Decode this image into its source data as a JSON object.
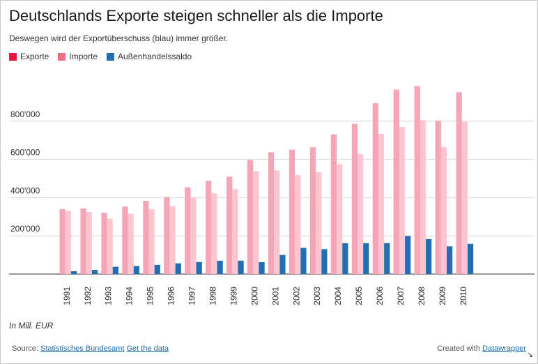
{
  "title": "Deutschlands Exporte steigen schneller als die Importe",
  "subtitle": "Deswegen wird der Exportüberschuss (blau) immer größer.",
  "legend": [
    {
      "label": "Exporte",
      "color": "#e5173f"
    },
    {
      "label": "Importe",
      "color": "#ee6f7f"
    },
    {
      "label": "Außenhandelssaldo",
      "color": "#1f6fb2"
    }
  ],
  "note": "In Mill. EUR",
  "footer": {
    "source_prefix": "Source:",
    "source_link": "Statistisches Bundesamt",
    "get_data": "Get the data",
    "created_prefix": "Created with",
    "created_link": "Datawrapper"
  },
  "icons": {
    "resize": "resize-icon"
  },
  "chart_data": {
    "type": "bar",
    "categories": [
      "1991",
      "1992",
      "1993",
      "1994",
      "1995",
      "1996",
      "1997",
      "1998",
      "1999",
      "2000",
      "2001",
      "2002",
      "2003",
      "2004",
      "2005",
      "2006",
      "2007",
      "2008",
      "2009",
      "2010"
    ],
    "series": [
      {
        "name": "Exporte",
        "color": "#f5a5b5",
        "values": [
          340000,
          343000,
          321000,
          353000,
          383000,
          403000,
          454000,
          488000,
          510000,
          597000,
          638000,
          651000,
          664000,
          731000,
          786000,
          894000,
          965000,
          984000,
          803000,
          952000
        ]
      },
      {
        "name": "Importe",
        "color": "#fdc6cf",
        "values": [
          330000,
          325000,
          290000,
          315000,
          340000,
          355000,
          400000,
          422000,
          445000,
          538000,
          542000,
          518000,
          534000,
          575000,
          628000,
          734000,
          770000,
          805000,
          665000,
          797000
        ]
      },
      {
        "name": "Außenhandelssaldo",
        "color": "#1f6fb2",
        "values": [
          15000,
          22000,
          38000,
          42000,
          48000,
          56000,
          63000,
          70000,
          70000,
          62000,
          100000,
          137000,
          130000,
          162000,
          162000,
          162000,
          199000,
          183000,
          145000,
          158000
        ]
      }
    ],
    "yticks": [
      {
        "value": 200000,
        "label": "200'000"
      },
      {
        "value": 400000,
        "label": "400'000"
      },
      {
        "value": 600000,
        "label": "600'000"
      },
      {
        "value": 800000,
        "label": "800'000"
      }
    ],
    "ylim": [
      0,
      1000000
    ],
    "grid": true
  }
}
